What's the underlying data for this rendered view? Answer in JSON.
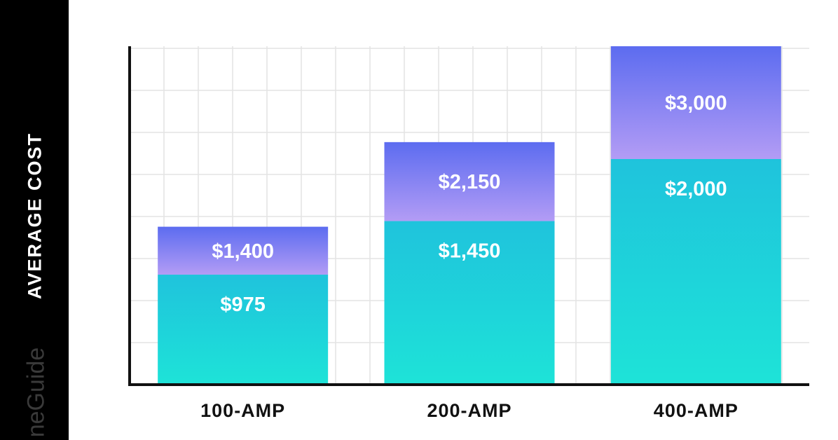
{
  "colors": {
    "background": "#ffffff",
    "left_band": "#000000",
    "grid": "#e3e3e3",
    "axis": "#111111",
    "low_top": "#1fc3dc",
    "low_bottom": "#1ee3d8",
    "high_top": "#5c6cf0",
    "high_bottom": "#b39cf5"
  },
  "watermark": "neGuide",
  "chart_data": {
    "type": "bar",
    "ylabel": "AVERAGE COST",
    "categories": [
      "100-AMP",
      "200-AMP",
      "400-AMP"
    ],
    "series": [
      {
        "values": [
          975,
          1450,
          2000
        ],
        "labels": [
          "$975",
          "$1,450",
          "$2,000"
        ]
      },
      {
        "values": [
          1400,
          2150,
          3000
        ],
        "labels": [
          "$1,400",
          "$2,150",
          "$3,000"
        ]
      }
    ],
    "ylim": [
      0,
      3000
    ],
    "grid": true
  }
}
